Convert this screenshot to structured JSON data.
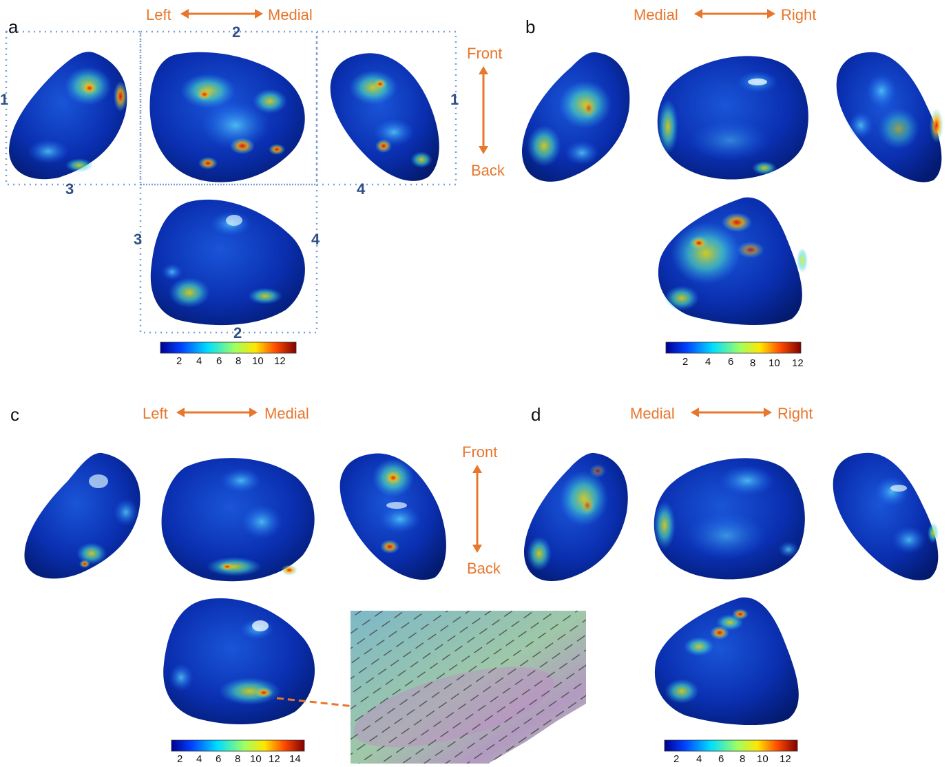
{
  "panels": [
    {
      "letter": "a"
    },
    {
      "letter": "b"
    },
    {
      "letter": "c"
    },
    {
      "letter": "d"
    }
  ],
  "orientation": {
    "left": "Left",
    "medial": "Medial",
    "right": "Right",
    "front": "Front",
    "back": "Back"
  },
  "view_numbers": {
    "one": "1",
    "two": "2",
    "three": "3",
    "four": "4"
  },
  "colorbars": {
    "a": {
      "ticks": [
        "2",
        "4",
        "6",
        "8",
        "10",
        "12"
      ]
    },
    "b": {
      "ticks": [
        "2",
        "4",
        "6",
        "8",
        "10",
        "12"
      ]
    },
    "c": {
      "ticks": [
        "2",
        "4",
        "6",
        "8",
        "10",
        "12",
        "14"
      ]
    },
    "d": {
      "ticks": [
        "2",
        "4",
        "6",
        "8",
        "10",
        "12"
      ]
    }
  },
  "colors": {
    "orientation": "#e8762b",
    "dotted_frame": "#7a9fd6",
    "view_number": "#2f4f86",
    "jet": [
      "#00008f",
      "#0050ff",
      "#00dfff",
      "#70ff80",
      "#ffe600",
      "#ff5a00",
      "#800000"
    ]
  }
}
